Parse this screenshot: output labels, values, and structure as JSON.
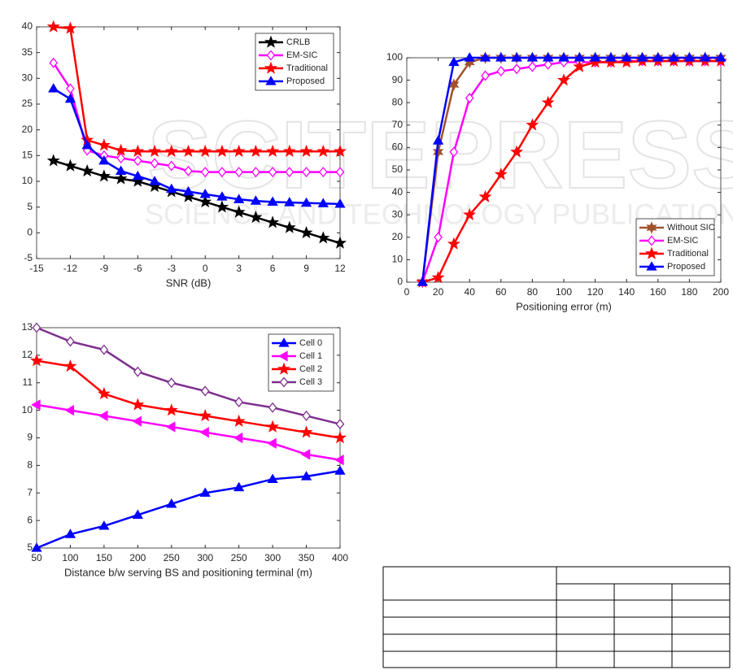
{
  "watermark": {
    "logo": "SCITEPRESS",
    "tagline": "SCIENCE AND TECHNOLOGY PUBLICATIONS"
  },
  "chart_data": [
    {
      "type": "line",
      "xlabel": "SNR (dB)",
      "xlim": [
        -15,
        12
      ],
      "ylim": [
        -5,
        40
      ],
      "xticks": [
        -15,
        -12,
        -9,
        -6,
        -3,
        0,
        3,
        6,
        9,
        12
      ],
      "yticks": [
        -5,
        0,
        5,
        10,
        15,
        20,
        25,
        30,
        35,
        40
      ],
      "legend": "upper right",
      "x": [
        -13.5,
        -12,
        -10.5,
        -9,
        -7.5,
        -6,
        -4.5,
        -3,
        -1.5,
        0,
        1.5,
        3,
        4.5,
        6,
        7.5,
        9,
        10.5,
        12
      ],
      "series": [
        {
          "name": "CRLB",
          "color": "#000000",
          "marker": "star",
          "values": [
            14,
            13,
            12,
            11,
            10.5,
            10,
            9,
            8,
            7,
            6,
            5,
            4,
            3,
            2,
            1,
            0,
            -1,
            -2
          ]
        },
        {
          "name": "EM-SIC",
          "color": "#ff00ff",
          "marker": "diamond",
          "values": [
            33,
            28,
            16,
            15,
            14.5,
            14,
            13.5,
            13,
            12,
            11.8,
            11.8,
            11.8,
            11.8,
            11.8,
            11.8,
            11.8,
            11.8,
            11.8
          ]
        },
        {
          "name": "Traditional",
          "color": "#ff0000",
          "marker": "star",
          "values": [
            40,
            39.7,
            18,
            17,
            16,
            15.8,
            15.8,
            15.8,
            15.8,
            15.8,
            15.8,
            15.8,
            15.8,
            15.8,
            15.8,
            15.8,
            15.8,
            15.8
          ]
        },
        {
          "name": "Proposed",
          "color": "#0000ff",
          "marker": "triangle",
          "values": [
            28,
            26,
            17,
            14,
            12,
            11,
            10,
            8.5,
            8,
            7.5,
            7,
            6.5,
            6.2,
            6,
            5.9,
            5.8,
            5.7,
            5.6
          ]
        }
      ]
    },
    {
      "type": "line",
      "xlabel": "Positioning error (m)",
      "xlim": [
        0,
        200
      ],
      "ylim": [
        0,
        100
      ],
      "xticks": [
        0,
        20,
        40,
        60,
        80,
        100,
        120,
        140,
        160,
        180,
        200
      ],
      "yticks": [
        0,
        10,
        20,
        30,
        40,
        50,
        60,
        70,
        80,
        90,
        100
      ],
      "legend": "lower right",
      "x": [
        10,
        20,
        30,
        40,
        50,
        60,
        70,
        80,
        90,
        100,
        110,
        120,
        130,
        140,
        150,
        160,
        170,
        180,
        190,
        200
      ],
      "series": [
        {
          "name": "Without SIC",
          "color": "#a0522d",
          "marker": "hexagram",
          "values": [
            0,
            58,
            88,
            98,
            100,
            100,
            100,
            100,
            100,
            100,
            100,
            100,
            100,
            100,
            100,
            100,
            100,
            100,
            100,
            100
          ]
        },
        {
          "name": "EM-SIC",
          "color": "#ff00ff",
          "marker": "diamond",
          "values": [
            0,
            20,
            58,
            82,
            92,
            94,
            95,
            96,
            97,
            98,
            98,
            98,
            98,
            98.5,
            98.5,
            98.5,
            98.5,
            98.5,
            98.5,
            98.5
          ]
        },
        {
          "name": "Traditional",
          "color": "#ff0000",
          "marker": "star",
          "values": [
            0,
            2,
            17,
            30,
            38,
            48,
            58,
            70,
            80,
            90,
            96,
            98,
            98,
            98,
            98.5,
            98.5,
            98.5,
            98.5,
            98.5,
            98.5
          ]
        },
        {
          "name": "Proposed",
          "color": "#0000ff",
          "marker": "triangle",
          "values": [
            0,
            63,
            98,
            100,
            100,
            100,
            100,
            100,
            100,
            100,
            100,
            100,
            100,
            100,
            100,
            100,
            100,
            100,
            100,
            100
          ]
        }
      ]
    },
    {
      "type": "line",
      "xlabel": "Distance b/w serving BS and positioning terminal (m)",
      "ylim": [
        5,
        13
      ],
      "yticks": [
        5,
        6,
        7,
        8,
        9,
        10,
        11,
        12,
        13
      ],
      "legend": "upper right",
      "categories": [
        "50",
        "100",
        "150",
        "200",
        "250",
        "300",
        "250",
        "300",
        "350",
        "400"
      ],
      "series": [
        {
          "name": "Cell 0",
          "color": "#0000ff",
          "marker": "triangle",
          "values": [
            5,
            5.5,
            5.8,
            6.2,
            6.6,
            7,
            7.2,
            7.5,
            7.6,
            7.8
          ]
        },
        {
          "name": "Cell 1",
          "color": "#ff00ff",
          "marker": "triangle-left",
          "values": [
            10.2,
            10,
            9.8,
            9.6,
            9.4,
            9.2,
            9,
            8.8,
            8.4,
            8.2
          ]
        },
        {
          "name": "Cell 2",
          "color": "#ff0000",
          "marker": "star",
          "values": [
            11.8,
            11.6,
            10.6,
            10.2,
            10,
            9.8,
            9.6,
            9.4,
            9.2,
            9
          ]
        },
        {
          "name": "Cell 3",
          "color": "#7e2f8e",
          "marker": "diamond",
          "values": [
            13,
            12.5,
            12.2,
            11.4,
            11,
            10.7,
            10.3,
            10.1,
            9.8,
            9.5
          ]
        }
      ]
    }
  ]
}
